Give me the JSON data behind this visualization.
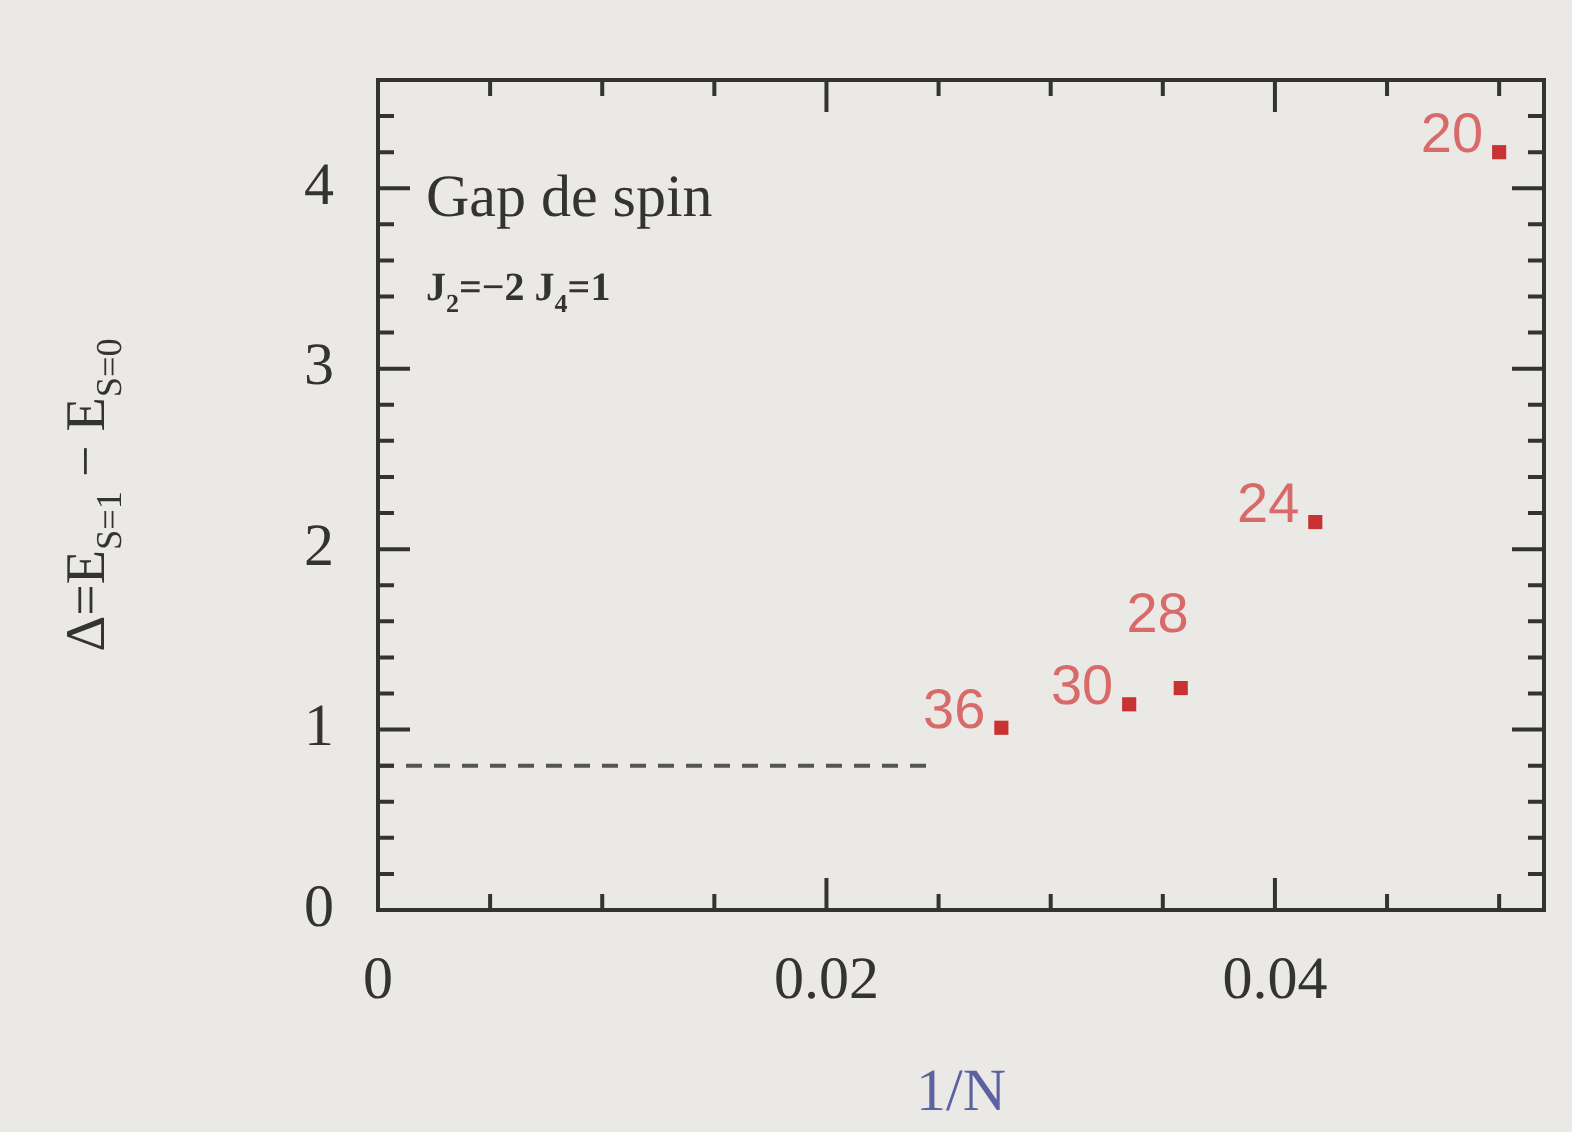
{
  "chart_data": {
    "type": "scatter",
    "xlabel": "1/N",
    "ylabel": "Δ=E$_{S=1}$ − E$_{S=0}$",
    "annotations": [
      "Gap de spin",
      "J$_{2}$=−2 J$_{4}$=1",
      {
        "text": "20",
        "x": 0.05,
        "y": 4.2
      },
      {
        "text": "24",
        "x": 0.0418,
        "y": 2.15
      },
      {
        "text": "28",
        "x": 0.0358,
        "y": 1.23
      },
      {
        "text": "30",
        "x": 0.0335,
        "y": 1.14
      },
      {
        "text": "36",
        "x": 0.0278,
        "y": 1.01
      }
    ],
    "xlim": [
      0,
      0.052
    ],
    "ylim": [
      0,
      4.6
    ],
    "xticks": [
      0,
      {
        "value": 0.005,
        "label": null
      },
      {
        "value": 0.01,
        "label": null
      },
      {
        "value": 0.015,
        "label": null
      },
      {
        "value": 0.02,
        "label": "0.02"
      },
      {
        "value": 0.025,
        "label": null
      },
      {
        "value": 0.03,
        "label": null
      },
      {
        "value": 0.035,
        "label": null
      },
      {
        "value": 0.04,
        "label": "0.04"
      },
      {
        "value": 0.045,
        "label": null
      },
      {
        "value": 0.05,
        "label": null
      }
    ],
    "yticks": [
      0,
      {
        "value": 0.2,
        "label": null
      },
      {
        "value": 0.4,
        "label": null
      },
      {
        "value": 0.6,
        "label": null
      },
      {
        "value": 0.8,
        "label": null
      },
      1,
      {
        "value": 1.2,
        "label": null
      },
      {
        "value": 1.4,
        "label": null
      },
      {
        "value": 1.6,
        "label": null
      },
      {
        "value": 1.8,
        "label": null
      },
      2,
      {
        "value": 2.2,
        "label": null
      },
      {
        "value": 2.4,
        "label": null
      },
      {
        "value": 2.6,
        "label": null
      },
      {
        "value": 2.8,
        "label": null
      },
      3,
      {
        "value": 3.2,
        "label": null
      },
      {
        "value": 3.4,
        "label": null
      },
      {
        "value": 3.6,
        "label": null
      },
      {
        "value": 3.8,
        "label": null
      },
      4,
      {
        "value": 4.2,
        "label": null
      },
      {
        "value": 4.4,
        "label": null
      }
    ],
    "grid": false,
    "legend": false,
    "series": [
      {
        "marker": "square",
        "color": "#c83232",
        "x": [
          0.05,
          0.0418,
          0.0358,
          0.0335,
          0.0278
        ],
        "values": [
          4.2,
          2.15,
          1.23,
          1.14,
          1.01
        ]
      },
      {
        "type": "line",
        "marker": "none",
        "line_style": "dashed",
        "color": "#555555",
        "x": [
          0,
          0.0245
        ],
        "values": [
          0.8,
          0.8
        ]
      }
    ]
  }
}
